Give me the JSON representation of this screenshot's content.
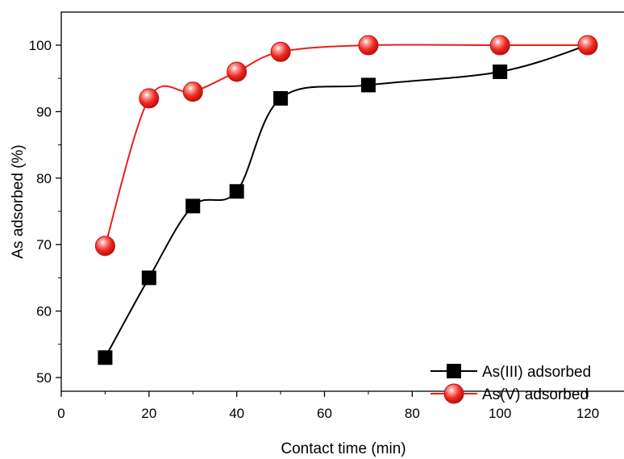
{
  "chart_data": {
    "type": "line",
    "title": "",
    "xlabel": "Contact time (min)",
    "ylabel": "As adsorbed (%)",
    "xlim": [
      0,
      130
    ],
    "ylim": [
      45,
      105
    ],
    "x_ticks": [
      0,
      20,
      40,
      60,
      80,
      100,
      120
    ],
    "y_ticks": [
      50,
      60,
      70,
      80,
      90,
      100
    ],
    "grid": false,
    "legend_position": "bottom-right",
    "series": [
      {
        "name": "As(III) adsorbed",
        "marker": "square",
        "color": "#000000",
        "marker_color": "#000000",
        "x": [
          10,
          20,
          30,
          40,
          50,
          70,
          100,
          120
        ],
        "y": [
          53,
          65,
          75.8,
          78,
          92,
          94,
          96,
          100
        ]
      },
      {
        "name": "As(V) adsorbed",
        "marker": "sphere",
        "color": "#e8201c",
        "marker_color": "#e8201c",
        "x": [
          10,
          20,
          30,
          40,
          50,
          70,
          100,
          120
        ],
        "y": [
          69.8,
          92,
          93,
          96,
          99,
          100,
          100,
          100
        ]
      }
    ]
  }
}
